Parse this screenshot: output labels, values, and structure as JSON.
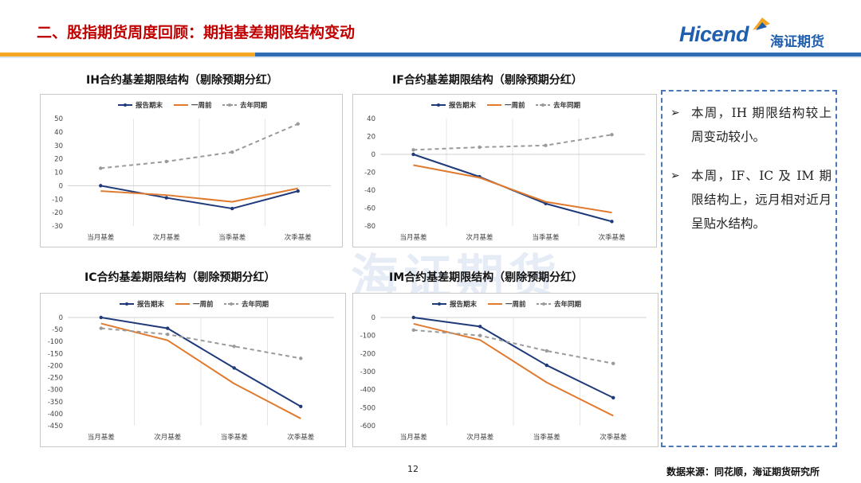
{
  "header": {
    "title": "二、股指期货周度回顾：期指基差期限结构变动"
  },
  "logo": {
    "latin": "Hicend",
    "chinese": "海证期货"
  },
  "colors": {
    "title_red": "#c00000",
    "brand_blue": "#1f5fae",
    "stripe_orange": "#f5a623",
    "stripe_blue": "#2e6db4",
    "series_navy": "#1f3a7a",
    "series_orange": "#e07a2e",
    "series_gray": "#9a9a9a"
  },
  "watermark": {
    "text": "海证期货"
  },
  "notes": [
    {
      "text": "本周，IH 期限结构较上周变动较小。"
    },
    {
      "text": "本周，IF、IC 及 IM 期限结构上，远月相对近月呈贴水结构。"
    }
  ],
  "footer": {
    "page": "12",
    "source": "数据来源：同花顺，海证期货研究所"
  },
  "chart_data": [
    {
      "type": "line",
      "title": "IH合约基差期限结构（剔除预期分红）",
      "categories": [
        "当月基差",
        "次月基差",
        "当季基差",
        "次季基差"
      ],
      "ylim": [
        -30,
        50
      ],
      "yticks": [
        50,
        40,
        30,
        20,
        10,
        0,
        -10,
        -20,
        -30
      ],
      "legend_position": "top",
      "series": [
        {
          "name": "报告期末",
          "values": [
            0,
            -9,
            -17,
            -4
          ]
        },
        {
          "name": "一周前",
          "values": [
            -4,
            -7,
            -12,
            -2
          ]
        },
        {
          "name": "去年同期",
          "values": [
            13,
            18,
            25,
            46
          ]
        }
      ]
    },
    {
      "type": "line",
      "title": "IF合约基差期限结构（剔除预期分红）",
      "categories": [
        "当月基差",
        "次月基差",
        "当季基差",
        "次季基差"
      ],
      "ylim": [
        -80,
        40
      ],
      "yticks": [
        40,
        20,
        0,
        -20,
        -40,
        -60,
        -80
      ],
      "legend_position": "top",
      "series": [
        {
          "name": "报告期末",
          "values": [
            0,
            -25,
            -55,
            -75
          ]
        },
        {
          "name": "一周前",
          "values": [
            -12,
            -26,
            -53,
            -65
          ]
        },
        {
          "name": "去年同期",
          "values": [
            5,
            8,
            10,
            22
          ]
        }
      ]
    },
    {
      "type": "line",
      "title": "IC合约基差期限结构（剔除预期分红）",
      "categories": [
        "当月基差",
        "次月基差",
        "当季基差",
        "次季基差"
      ],
      "ylim": [
        -450,
        0
      ],
      "yticks": [
        0,
        -50,
        -100,
        -150,
        -200,
        -250,
        -300,
        -350,
        -400,
        -450
      ],
      "legend_position": "top",
      "series": [
        {
          "name": "报告期末",
          "values": [
            0,
            -45,
            -210,
            -370
          ]
        },
        {
          "name": "一周前",
          "values": [
            -25,
            -95,
            -275,
            -420
          ]
        },
        {
          "name": "去年同期",
          "values": [
            -45,
            -70,
            -120,
            -170
          ]
        }
      ]
    },
    {
      "type": "line",
      "title": "IM合约基差期限结构（剔除预期分红）",
      "categories": [
        "当月基差",
        "次月基差",
        "当季基差",
        "次季基差"
      ],
      "ylim": [
        -600,
        0
      ],
      "yticks": [
        0,
        -100,
        -200,
        -300,
        -400,
        -500,
        -600
      ],
      "legend_position": "top",
      "series": [
        {
          "name": "报告期末",
          "values": [
            0,
            -50,
            -265,
            -445
          ]
        },
        {
          "name": "一周前",
          "values": [
            -35,
            -125,
            -360,
            -545
          ]
        },
        {
          "name": "去年同期",
          "values": [
            -70,
            -100,
            -185,
            -255
          ]
        }
      ]
    }
  ]
}
